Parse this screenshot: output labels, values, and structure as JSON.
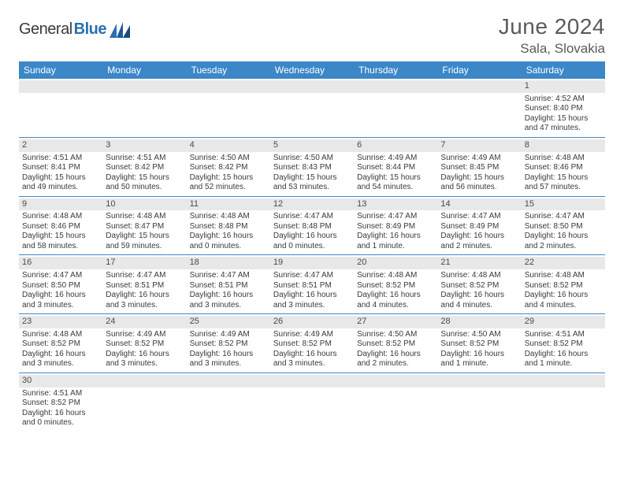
{
  "logo": {
    "text1": "General",
    "text2": "Blue",
    "triColors": [
      "#2b6fb0",
      "#1f5a94",
      "#174a7c"
    ]
  },
  "header": {
    "monthTitle": "June 2024",
    "location": "Sala, Slovakia"
  },
  "dayNames": [
    "Sunday",
    "Monday",
    "Tuesday",
    "Wednesday",
    "Thursday",
    "Friday",
    "Saturday"
  ],
  "colors": {
    "headerBg": "#3b87c8",
    "headerText": "#ffffff",
    "rowDivider": "#3b87c8",
    "dayNumBg": "#e8e8e8",
    "bodyText": "#3a3a3a",
    "titleText": "#5a5a5a"
  },
  "weeks": [
    [
      null,
      null,
      null,
      null,
      null,
      null,
      {
        "num": "1",
        "sunrise": "Sunrise: 4:52 AM",
        "sunset": "Sunset: 8:40 PM",
        "daylight": "Daylight: 15 hours and 47 minutes."
      }
    ],
    [
      {
        "num": "2",
        "sunrise": "Sunrise: 4:51 AM",
        "sunset": "Sunset: 8:41 PM",
        "daylight": "Daylight: 15 hours and 49 minutes."
      },
      {
        "num": "3",
        "sunrise": "Sunrise: 4:51 AM",
        "sunset": "Sunset: 8:42 PM",
        "daylight": "Daylight: 15 hours and 50 minutes."
      },
      {
        "num": "4",
        "sunrise": "Sunrise: 4:50 AM",
        "sunset": "Sunset: 8:42 PM",
        "daylight": "Daylight: 15 hours and 52 minutes."
      },
      {
        "num": "5",
        "sunrise": "Sunrise: 4:50 AM",
        "sunset": "Sunset: 8:43 PM",
        "daylight": "Daylight: 15 hours and 53 minutes."
      },
      {
        "num": "6",
        "sunrise": "Sunrise: 4:49 AM",
        "sunset": "Sunset: 8:44 PM",
        "daylight": "Daylight: 15 hours and 54 minutes."
      },
      {
        "num": "7",
        "sunrise": "Sunrise: 4:49 AM",
        "sunset": "Sunset: 8:45 PM",
        "daylight": "Daylight: 15 hours and 56 minutes."
      },
      {
        "num": "8",
        "sunrise": "Sunrise: 4:48 AM",
        "sunset": "Sunset: 8:46 PM",
        "daylight": "Daylight: 15 hours and 57 minutes."
      }
    ],
    [
      {
        "num": "9",
        "sunrise": "Sunrise: 4:48 AM",
        "sunset": "Sunset: 8:46 PM",
        "daylight": "Daylight: 15 hours and 58 minutes."
      },
      {
        "num": "10",
        "sunrise": "Sunrise: 4:48 AM",
        "sunset": "Sunset: 8:47 PM",
        "daylight": "Daylight: 15 hours and 59 minutes."
      },
      {
        "num": "11",
        "sunrise": "Sunrise: 4:48 AM",
        "sunset": "Sunset: 8:48 PM",
        "daylight": "Daylight: 16 hours and 0 minutes."
      },
      {
        "num": "12",
        "sunrise": "Sunrise: 4:47 AM",
        "sunset": "Sunset: 8:48 PM",
        "daylight": "Daylight: 16 hours and 0 minutes."
      },
      {
        "num": "13",
        "sunrise": "Sunrise: 4:47 AM",
        "sunset": "Sunset: 8:49 PM",
        "daylight": "Daylight: 16 hours and 1 minute."
      },
      {
        "num": "14",
        "sunrise": "Sunrise: 4:47 AM",
        "sunset": "Sunset: 8:49 PM",
        "daylight": "Daylight: 16 hours and 2 minutes."
      },
      {
        "num": "15",
        "sunrise": "Sunrise: 4:47 AM",
        "sunset": "Sunset: 8:50 PM",
        "daylight": "Daylight: 16 hours and 2 minutes."
      }
    ],
    [
      {
        "num": "16",
        "sunrise": "Sunrise: 4:47 AM",
        "sunset": "Sunset: 8:50 PM",
        "daylight": "Daylight: 16 hours and 3 minutes."
      },
      {
        "num": "17",
        "sunrise": "Sunrise: 4:47 AM",
        "sunset": "Sunset: 8:51 PM",
        "daylight": "Daylight: 16 hours and 3 minutes."
      },
      {
        "num": "18",
        "sunrise": "Sunrise: 4:47 AM",
        "sunset": "Sunset: 8:51 PM",
        "daylight": "Daylight: 16 hours and 3 minutes."
      },
      {
        "num": "19",
        "sunrise": "Sunrise: 4:47 AM",
        "sunset": "Sunset: 8:51 PM",
        "daylight": "Daylight: 16 hours and 3 minutes."
      },
      {
        "num": "20",
        "sunrise": "Sunrise: 4:48 AM",
        "sunset": "Sunset: 8:52 PM",
        "daylight": "Daylight: 16 hours and 4 minutes."
      },
      {
        "num": "21",
        "sunrise": "Sunrise: 4:48 AM",
        "sunset": "Sunset: 8:52 PM",
        "daylight": "Daylight: 16 hours and 4 minutes."
      },
      {
        "num": "22",
        "sunrise": "Sunrise: 4:48 AM",
        "sunset": "Sunset: 8:52 PM",
        "daylight": "Daylight: 16 hours and 4 minutes."
      }
    ],
    [
      {
        "num": "23",
        "sunrise": "Sunrise: 4:48 AM",
        "sunset": "Sunset: 8:52 PM",
        "daylight": "Daylight: 16 hours and 3 minutes."
      },
      {
        "num": "24",
        "sunrise": "Sunrise: 4:49 AM",
        "sunset": "Sunset: 8:52 PM",
        "daylight": "Daylight: 16 hours and 3 minutes."
      },
      {
        "num": "25",
        "sunrise": "Sunrise: 4:49 AM",
        "sunset": "Sunset: 8:52 PM",
        "daylight": "Daylight: 16 hours and 3 minutes."
      },
      {
        "num": "26",
        "sunrise": "Sunrise: 4:49 AM",
        "sunset": "Sunset: 8:52 PM",
        "daylight": "Daylight: 16 hours and 3 minutes."
      },
      {
        "num": "27",
        "sunrise": "Sunrise: 4:50 AM",
        "sunset": "Sunset: 8:52 PM",
        "daylight": "Daylight: 16 hours and 2 minutes."
      },
      {
        "num": "28",
        "sunrise": "Sunrise: 4:50 AM",
        "sunset": "Sunset: 8:52 PM",
        "daylight": "Daylight: 16 hours and 1 minute."
      },
      {
        "num": "29",
        "sunrise": "Sunrise: 4:51 AM",
        "sunset": "Sunset: 8:52 PM",
        "daylight": "Daylight: 16 hours and 1 minute."
      }
    ],
    [
      {
        "num": "30",
        "sunrise": "Sunrise: 4:51 AM",
        "sunset": "Sunset: 8:52 PM",
        "daylight": "Daylight: 16 hours and 0 minutes."
      },
      null,
      null,
      null,
      null,
      null,
      null
    ]
  ]
}
